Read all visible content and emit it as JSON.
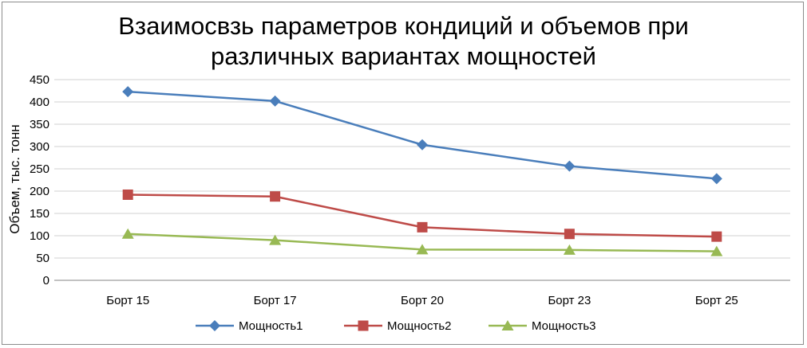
{
  "chart_data": {
    "type": "line",
    "title": [
      "Взаимосвзь параметров кондиций и объемов при",
      "различных вариантах мощностей"
    ],
    "xlabel": "",
    "ylabel": "Объем, тыс. тонн",
    "ylim": [
      0,
      450
    ],
    "yticks": [
      0,
      50,
      100,
      150,
      200,
      250,
      300,
      350,
      400,
      450
    ],
    "grid": true,
    "legend_position": "bottom",
    "categories": [
      "Борт 15",
      "Борт 17",
      "Борт 20",
      "Борт 23",
      "Борт 25"
    ],
    "series": [
      {
        "name": "Мощность1",
        "values": [
          423,
          402,
          304,
          256,
          228
        ],
        "color": "#4a7ebb",
        "marker": "diamond"
      },
      {
        "name": "Мощность2",
        "values": [
          192,
          188,
          119,
          104,
          98
        ],
        "color": "#be4b48",
        "marker": "square"
      },
      {
        "name": "Мощность3",
        "values": [
          104,
          90,
          69,
          68,
          65
        ],
        "color": "#98b954",
        "marker": "triangle"
      }
    ]
  }
}
